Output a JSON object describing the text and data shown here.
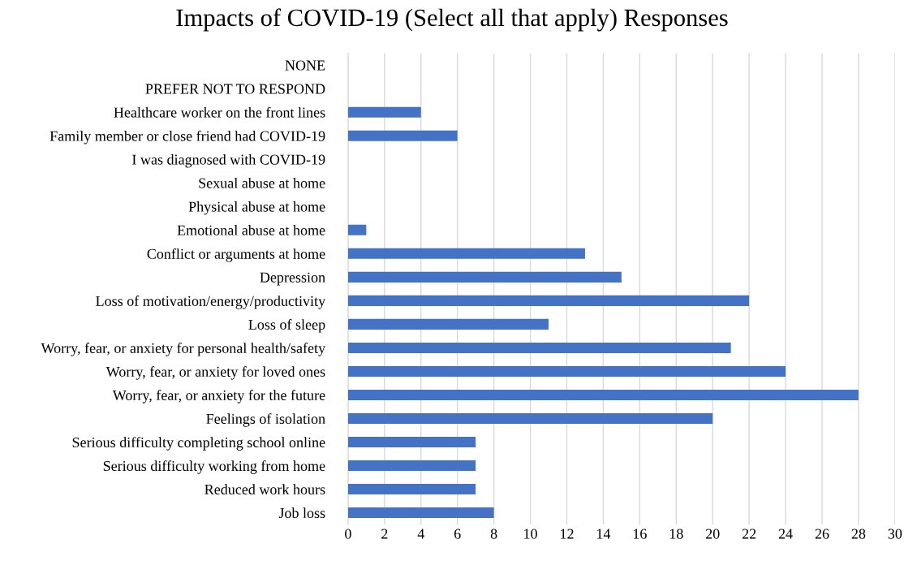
{
  "chart_data": {
    "type": "bar",
    "orientation": "horizontal",
    "title": "Impacts of COVID-19 (Select all that apply) Responses",
    "categories": [
      "NONE",
      "PREFER NOT TO RESPOND",
      "Healthcare worker on the front lines",
      "Family member or close friend had COVID-19",
      "I was diagnosed with COVID-19",
      "Sexual abuse at home",
      "Physical abuse at home",
      "Emotional abuse at home",
      "Conflict or arguments at home",
      "Depression",
      "Loss of motivation/energy/productivity",
      "Loss of sleep",
      "Worry, fear, or anxiety for personal health/safety",
      "Worry, fear, or anxiety for loved ones",
      "Worry, fear, or anxiety for the future",
      "Feelings of isolation",
      "Serious difficulty completing school online",
      "Serious difficulty working from home",
      "Reduced work hours",
      "Job loss"
    ],
    "values": [
      0,
      0,
      4,
      6,
      0,
      0,
      0,
      1,
      13,
      15,
      22,
      11,
      21,
      24,
      28,
      20,
      7,
      7,
      7,
      8
    ],
    "color": "#4472c4",
    "xlim": [
      0,
      30
    ],
    "xticks": [
      0,
      2,
      4,
      6,
      8,
      10,
      12,
      14,
      16,
      18,
      20,
      22,
      24,
      26,
      28,
      30
    ],
    "grid": "x"
  }
}
